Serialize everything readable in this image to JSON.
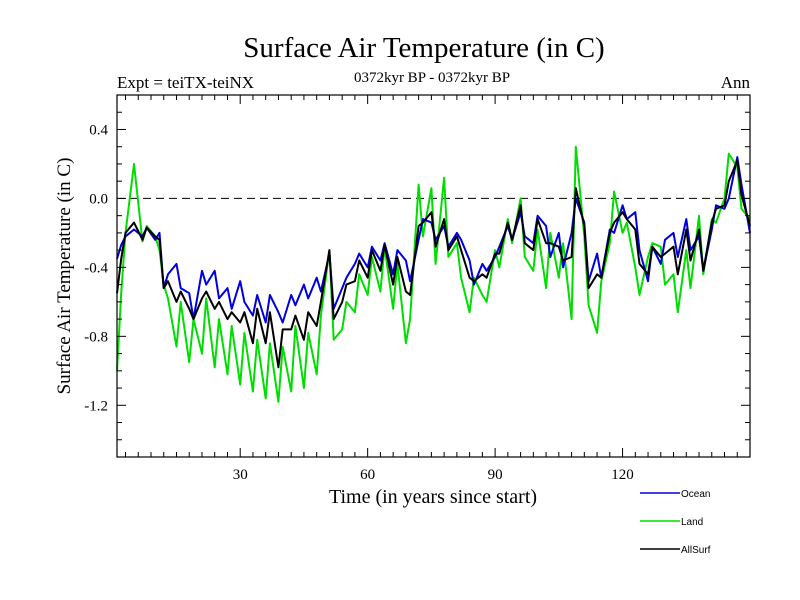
{
  "chart_data": {
    "type": "line",
    "title": "Surface Air Temperature (in C)",
    "left_label": "Expt = teiTX-teiNX",
    "center_label": "0372kyr BP - 0372kyr BP",
    "right_label": "Ann",
    "xlabel": "Time (in years since start)",
    "ylabel": "Surface Air Temperature (in C)",
    "xlim": [
      1,
      150
    ],
    "ylim": [
      -1.5,
      0.6
    ],
    "x_ticks": [
      30,
      60,
      90,
      120
    ],
    "x_tick_labels": [
      "30",
      "60",
      "90",
      "120"
    ],
    "y_ticks": [
      0.4,
      0.0,
      -0.4,
      -0.8,
      -1.2
    ],
    "y_tick_labels": [
      "0.4",
      "0.0",
      "-0.4",
      "-0.8",
      "-1.2"
    ],
    "reference_line": 0.0,
    "series": [
      {
        "name": "Ocean",
        "color": "#0000dd",
        "x": [
          1,
          2,
          3,
          5,
          7,
          8,
          10,
          11,
          12,
          13,
          15,
          16,
          18,
          19,
          21,
          22,
          24,
          25,
          27,
          28,
          30,
          31,
          33,
          34,
          36,
          37,
          39,
          40,
          42,
          43,
          45,
          46,
          48,
          49,
          51,
          52,
          54,
          55,
          57,
          58,
          60,
          61,
          63,
          64,
          66,
          67,
          69,
          70,
          72,
          73,
          75,
          76,
          78,
          79,
          81,
          82,
          84,
          85,
          87,
          88,
          90,
          91,
          93,
          94,
          96,
          97,
          99,
          100,
          102,
          103,
          105,
          106,
          108,
          109,
          111,
          112,
          114,
          115,
          117,
          118,
          120,
          121,
          123,
          124,
          126,
          127,
          129,
          130,
          132,
          133,
          135,
          136,
          138,
          139,
          141,
          142,
          144,
          145,
          147,
          148,
          150
        ],
        "values": [
          -0.35,
          -0.27,
          -0.22,
          -0.18,
          -0.22,
          -0.17,
          -0.24,
          -0.2,
          -0.52,
          -0.44,
          -0.38,
          -0.52,
          -0.55,
          -0.7,
          -0.42,
          -0.5,
          -0.42,
          -0.58,
          -0.52,
          -0.64,
          -0.48,
          -0.6,
          -0.68,
          -0.56,
          -0.72,
          -0.56,
          -0.66,
          -0.72,
          -0.56,
          -0.62,
          -0.5,
          -0.58,
          -0.46,
          -0.54,
          -0.32,
          -0.64,
          -0.52,
          -0.46,
          -0.38,
          -0.32,
          -0.4,
          -0.28,
          -0.36,
          -0.26,
          -0.44,
          -0.3,
          -0.36,
          -0.48,
          -0.24,
          -0.12,
          -0.14,
          -0.24,
          -0.16,
          -0.28,
          -0.2,
          -0.24,
          -0.36,
          -0.5,
          -0.38,
          -0.42,
          -0.34,
          -0.28,
          -0.16,
          -0.24,
          -0.08,
          -0.22,
          -0.26,
          -0.1,
          -0.16,
          -0.34,
          -0.2,
          -0.4,
          -0.2,
          0.0,
          -0.14,
          -0.48,
          -0.32,
          -0.46,
          -0.18,
          -0.2,
          -0.04,
          -0.12,
          -0.08,
          -0.3,
          -0.48,
          -0.28,
          -0.38,
          -0.24,
          -0.2,
          -0.34,
          -0.12,
          -0.3,
          -0.22,
          -0.42,
          -0.18,
          -0.04,
          -0.06,
          0.0,
          0.24,
          0.08,
          -0.2
        ]
      },
      {
        "name": "Land",
        "color": "#00dd00",
        "x": [
          1,
          2,
          3,
          5,
          7,
          8,
          10,
          11,
          12,
          13,
          15,
          16,
          18,
          19,
          21,
          22,
          24,
          25,
          27,
          28,
          30,
          31,
          33,
          34,
          36,
          37,
          39,
          40,
          42,
          43,
          45,
          46,
          48,
          49,
          51,
          52,
          54,
          55,
          57,
          58,
          60,
          61,
          63,
          64,
          66,
          67,
          69,
          70,
          72,
          73,
          75,
          76,
          78,
          79,
          81,
          82,
          84,
          85,
          87,
          88,
          90,
          91,
          93,
          94,
          96,
          97,
          99,
          100,
          102,
          103,
          105,
          106,
          108,
          109,
          111,
          112,
          114,
          115,
          117,
          118,
          120,
          121,
          123,
          124,
          126,
          127,
          129,
          130,
          132,
          133,
          135,
          136,
          138,
          139,
          141,
          142,
          144,
          145,
          147,
          148,
          150
        ],
        "values": [
          -1.0,
          -0.55,
          -0.2,
          0.2,
          -0.25,
          -0.16,
          -0.22,
          -0.3,
          -0.5,
          -0.58,
          -0.86,
          -0.6,
          -0.95,
          -0.7,
          -0.9,
          -0.58,
          -0.98,
          -0.7,
          -1.02,
          -0.74,
          -1.08,
          -0.78,
          -1.12,
          -0.82,
          -1.16,
          -0.84,
          -1.18,
          -0.86,
          -1.12,
          -0.74,
          -1.1,
          -0.78,
          -1.02,
          -0.68,
          -0.3,
          -0.82,
          -0.76,
          -0.6,
          -0.66,
          -0.44,
          -0.56,
          -0.34,
          -0.54,
          -0.28,
          -0.64,
          -0.38,
          -0.84,
          -0.7,
          0.08,
          -0.22,
          0.06,
          -0.38,
          0.12,
          -0.34,
          -0.26,
          -0.46,
          -0.66,
          -0.46,
          -0.56,
          -0.6,
          -0.3,
          -0.4,
          -0.12,
          -0.26,
          0.0,
          -0.34,
          -0.42,
          -0.18,
          -0.52,
          -0.2,
          -0.46,
          -0.26,
          -0.7,
          0.3,
          -0.22,
          -0.62,
          -0.78,
          -0.48,
          -0.26,
          0.04,
          -0.2,
          -0.14,
          -0.4,
          -0.56,
          -0.34,
          -0.26,
          -0.28,
          -0.5,
          -0.44,
          -0.66,
          -0.3,
          -0.52,
          -0.1,
          -0.44,
          -0.12,
          -0.14,
          0.0,
          0.26,
          0.18,
          -0.06,
          -0.12
        ]
      },
      {
        "name": "AllSurf",
        "color": "#000000",
        "x": [
          1,
          2,
          3,
          5,
          7,
          8,
          10,
          11,
          12,
          13,
          15,
          16,
          18,
          19,
          21,
          22,
          24,
          25,
          27,
          28,
          30,
          31,
          33,
          34,
          36,
          37,
          39,
          40,
          42,
          43,
          45,
          46,
          48,
          49,
          51,
          52,
          54,
          55,
          57,
          58,
          60,
          61,
          63,
          64,
          66,
          67,
          69,
          70,
          72,
          73,
          75,
          76,
          78,
          79,
          81,
          82,
          84,
          85,
          87,
          88,
          90,
          91,
          93,
          94,
          96,
          97,
          99,
          100,
          102,
          103,
          105,
          106,
          108,
          109,
          111,
          112,
          114,
          115,
          117,
          118,
          120,
          121,
          123,
          124,
          126,
          127,
          129,
          130,
          132,
          133,
          135,
          136,
          138,
          139,
          141,
          142,
          144,
          145,
          147,
          148,
          150
        ],
        "values": [
          -0.55,
          -0.35,
          -0.2,
          -0.14,
          -0.24,
          -0.17,
          -0.22,
          -0.24,
          -0.52,
          -0.48,
          -0.6,
          -0.54,
          -0.64,
          -0.7,
          -0.58,
          -0.54,
          -0.64,
          -0.6,
          -0.7,
          -0.66,
          -0.72,
          -0.66,
          -0.84,
          -0.64,
          -0.84,
          -0.66,
          -0.98,
          -0.76,
          -0.76,
          -0.68,
          -0.82,
          -0.66,
          -0.74,
          -0.6,
          -0.3,
          -0.7,
          -0.6,
          -0.5,
          -0.48,
          -0.36,
          -0.46,
          -0.3,
          -0.42,
          -0.27,
          -0.5,
          -0.34,
          -0.54,
          -0.56,
          -0.16,
          -0.14,
          -0.08,
          -0.28,
          -0.12,
          -0.3,
          -0.22,
          -0.3,
          -0.46,
          -0.48,
          -0.44,
          -0.46,
          -0.32,
          -0.32,
          -0.14,
          -0.24,
          -0.04,
          -0.26,
          -0.3,
          -0.12,
          -0.26,
          -0.26,
          -0.28,
          -0.36,
          -0.34,
          0.06,
          -0.16,
          -0.52,
          -0.44,
          -0.46,
          -0.2,
          -0.14,
          -0.08,
          -0.12,
          -0.18,
          -0.38,
          -0.44,
          -0.28,
          -0.34,
          -0.32,
          -0.28,
          -0.44,
          -0.18,
          -0.36,
          -0.18,
          -0.42,
          -0.14,
          -0.06,
          -0.04,
          0.1,
          0.22,
          0.02,
          -0.16
        ]
      }
    ],
    "legend": {
      "placement": "bottom-right",
      "entries": [
        "Ocean",
        "Land",
        "AllSurf"
      ]
    }
  }
}
